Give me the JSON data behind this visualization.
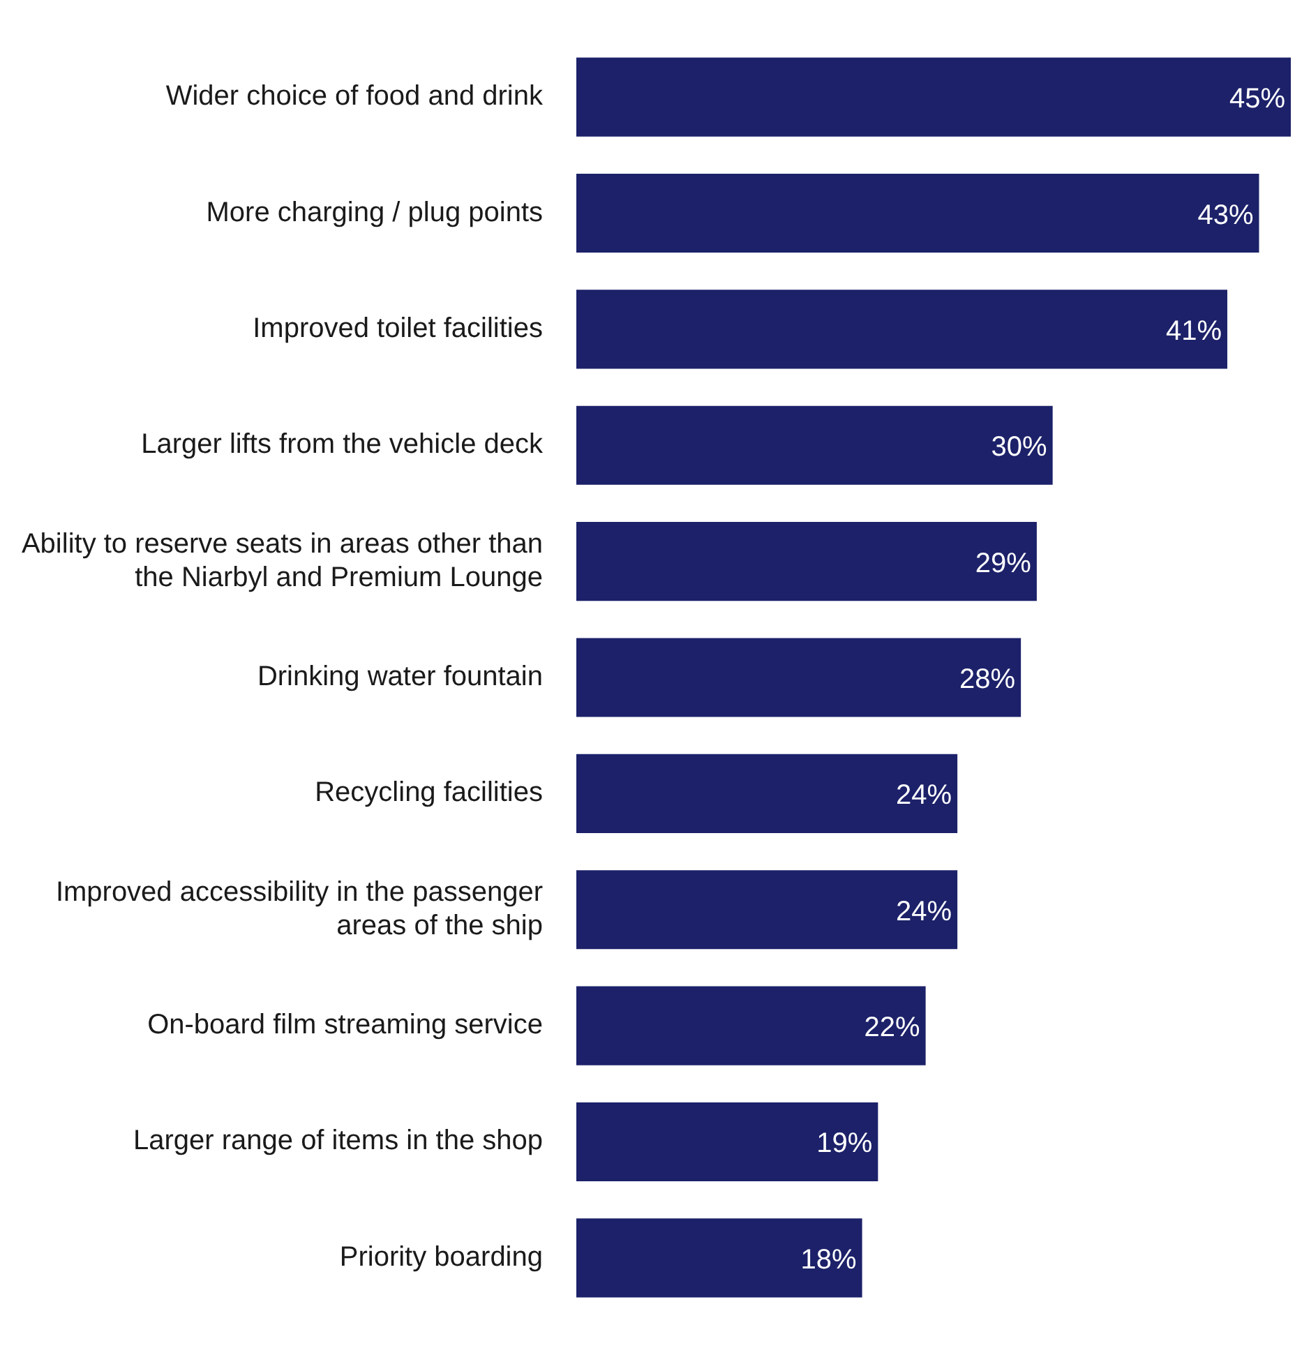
{
  "chart_data": {
    "type": "bar",
    "orientation": "horizontal",
    "categories": [
      "Wider choice of food and drink",
      "More charging / plug points",
      "Improved toilet facilities",
      "Larger lifts from the vehicle deck",
      "Ability to reserve seats in areas other than the Niarbyl and Premium Lounge",
      "Drinking water fountain",
      "Recycling facilities",
      "Improved accessibility in the passenger areas of the ship",
      "On-board film streaming service",
      "Larger range of items in the shop",
      "Priority boarding"
    ],
    "values": [
      45,
      43,
      41,
      30,
      29,
      28,
      24,
      24,
      22,
      19,
      18
    ],
    "value_labels": [
      "45%",
      "43%",
      "41%",
      "30%",
      "29%",
      "28%",
      "24%",
      "24%",
      "22%",
      "19%",
      "18%"
    ],
    "color": "#1c2169",
    "legend": false,
    "tick_labels": "y"
  }
}
